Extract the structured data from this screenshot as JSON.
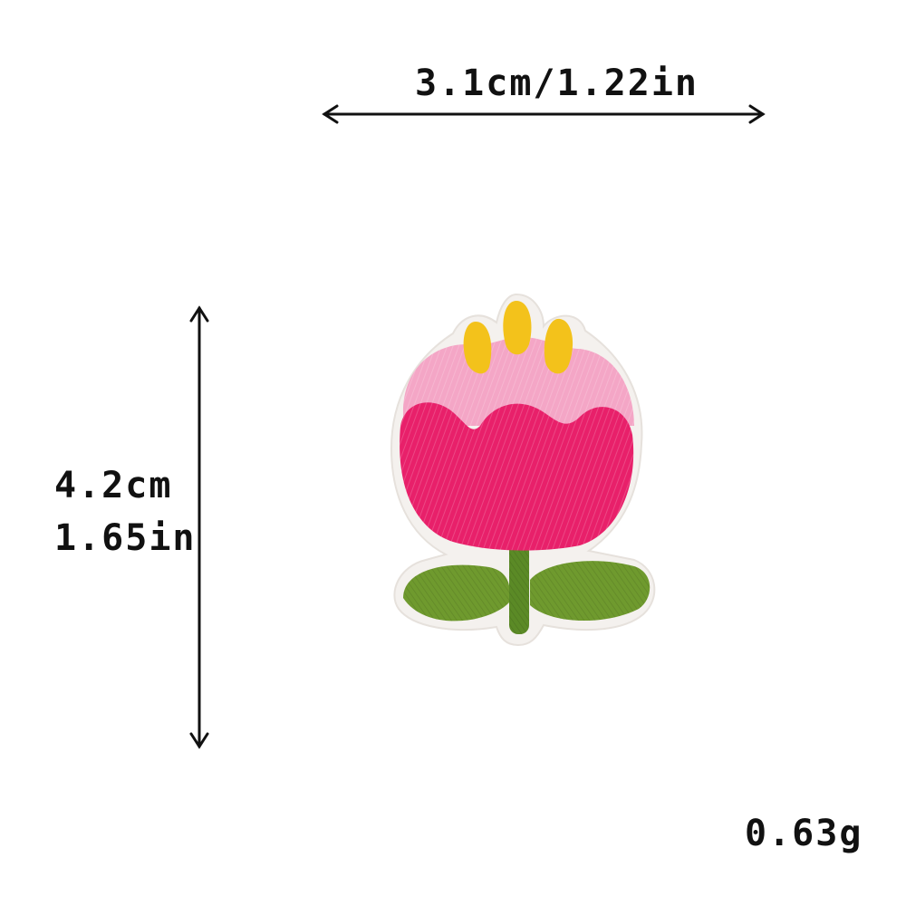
{
  "dimensions": {
    "width_label": "3.1cm/1.22in",
    "height_cm": "4.2cm",
    "height_in": "1.65in",
    "weight": "0.63g"
  },
  "colors": {
    "background": "#ffffff",
    "petal_main": "#e8206a",
    "petal_light": "#f4a6c6",
    "stamen": "#f3c21b",
    "leaf": "#6f9a2e",
    "stem": "#5b8a26",
    "border": "#f4f1ee",
    "arrow": "#111111"
  },
  "product": {
    "icon": "embroidered-tulip-patch"
  }
}
